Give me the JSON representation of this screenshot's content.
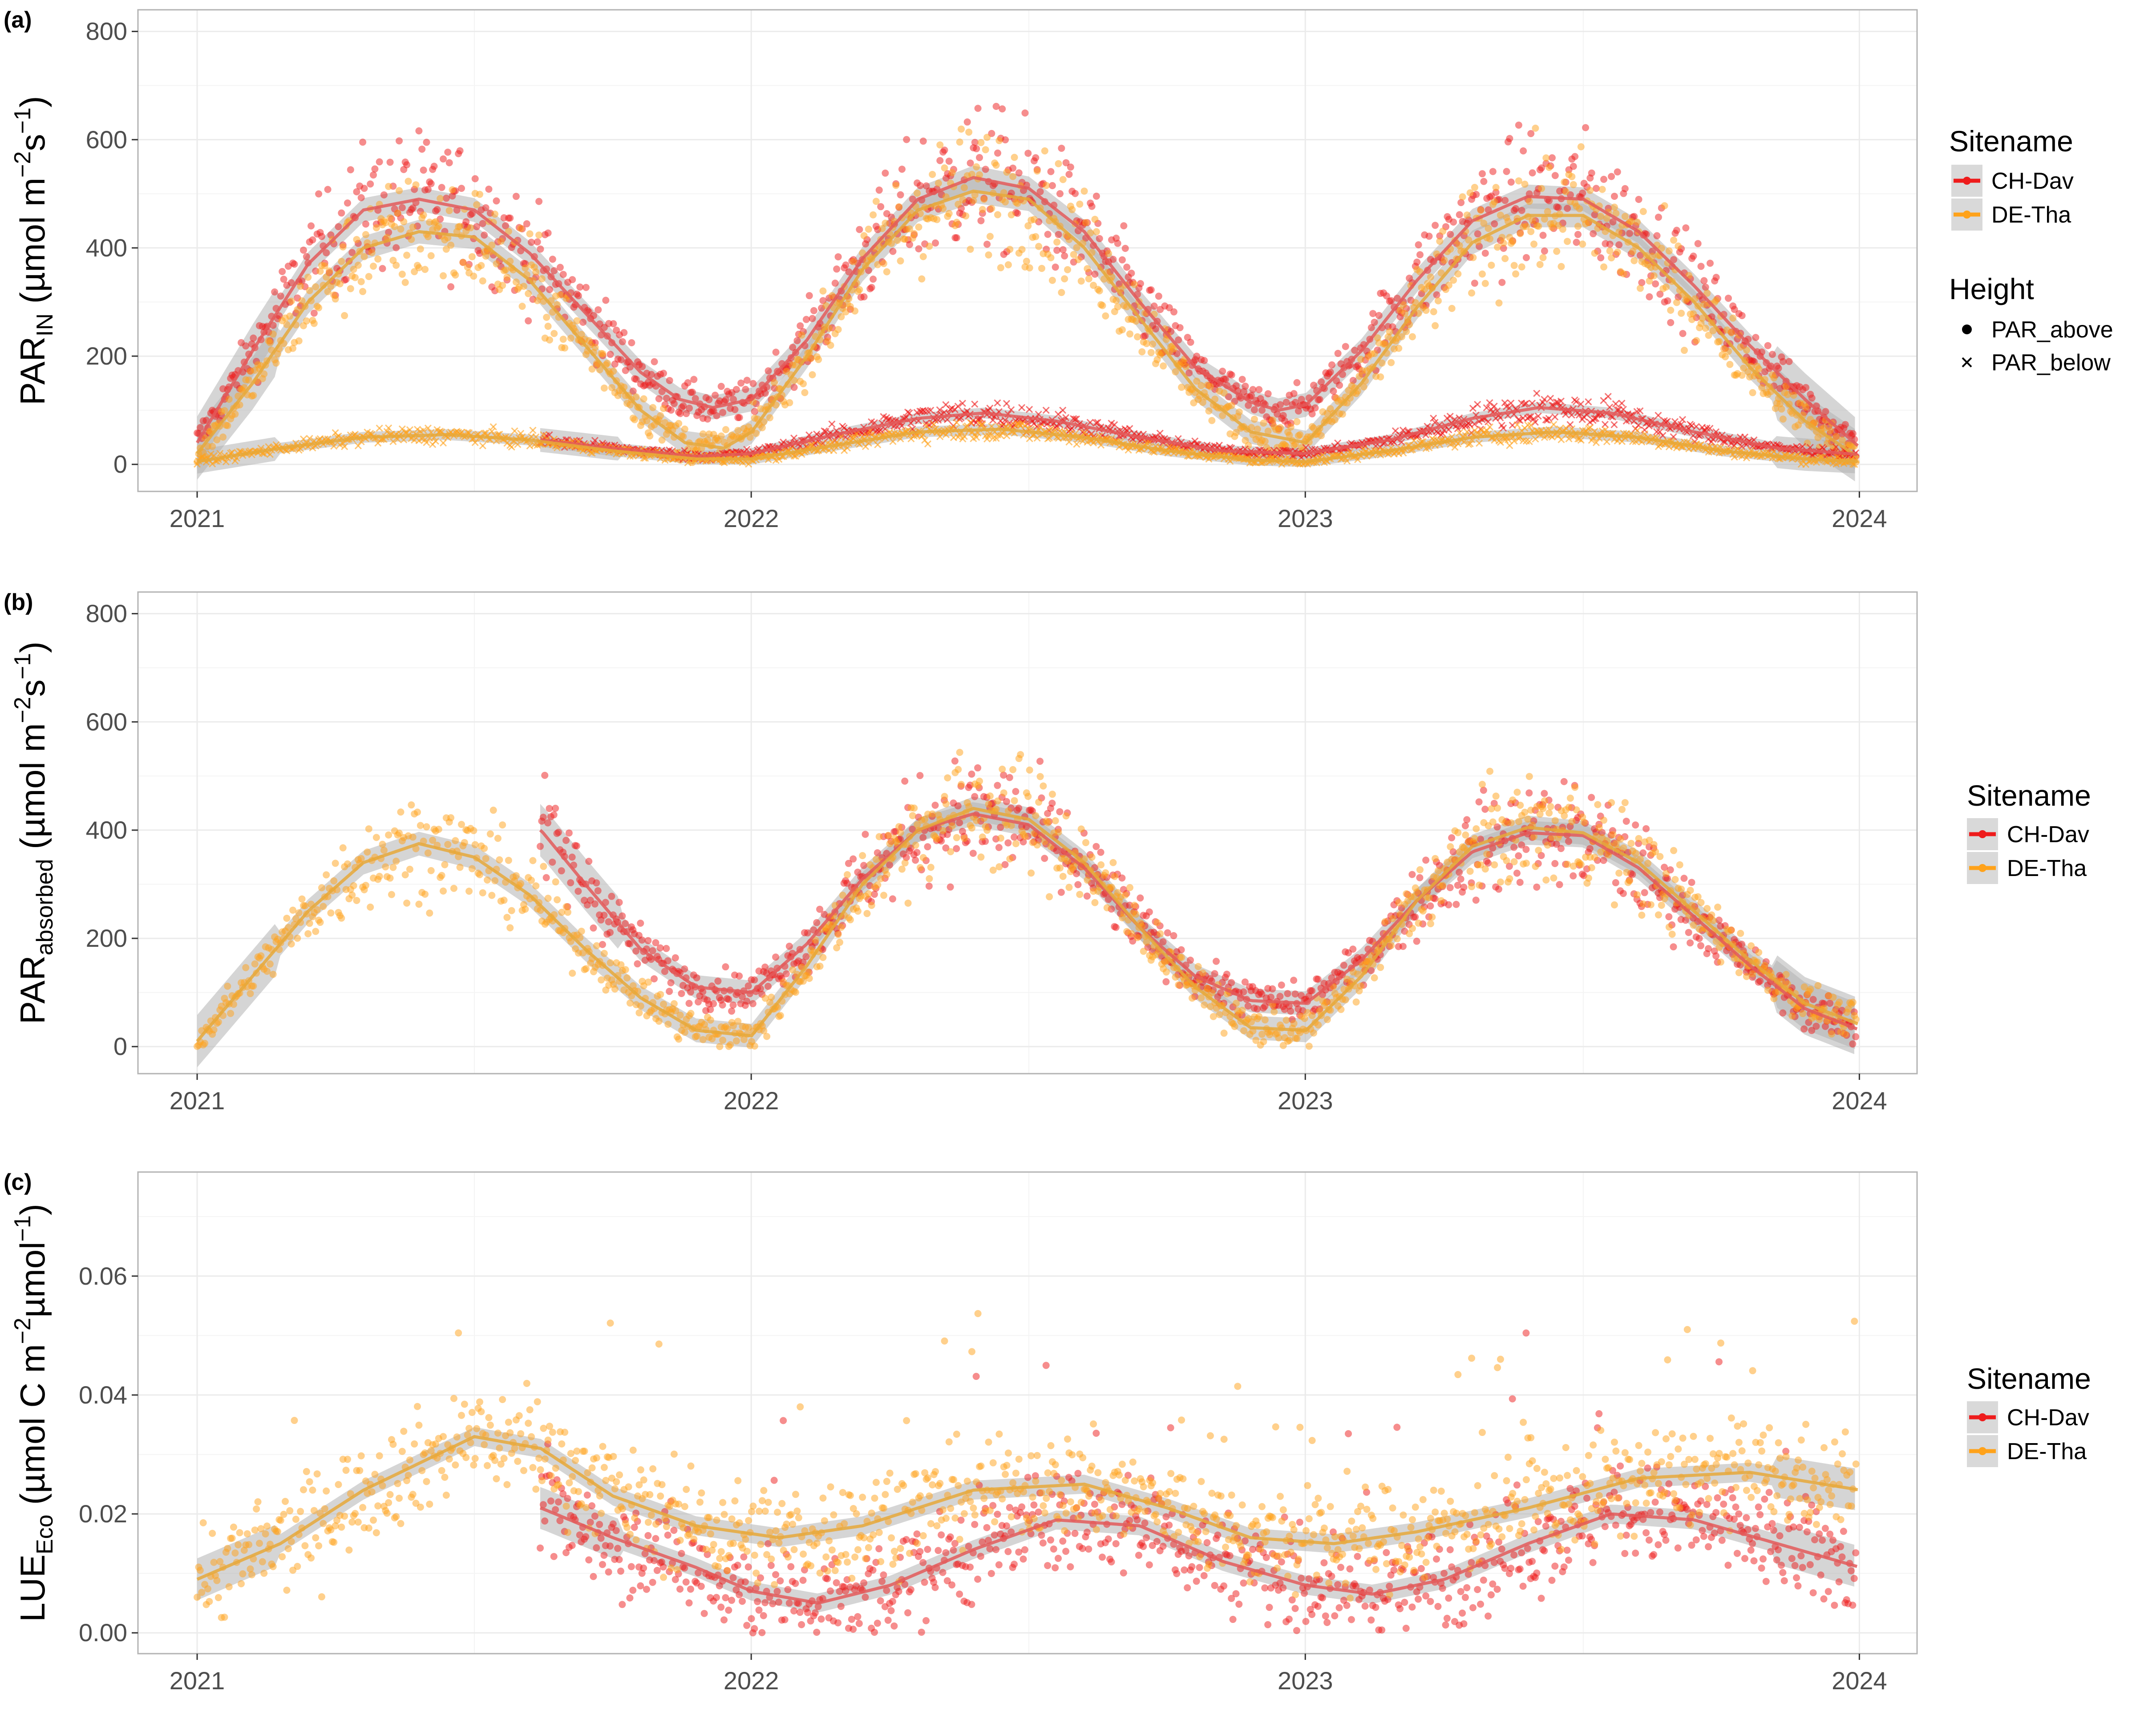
{
  "colors": {
    "CH-Dav": "#ee1c1c",
    "DE-Tha": "#ffa21a",
    "ribbon": "#b3b3b3",
    "smooth_CH-Dav": "#e35a5a",
    "smooth_DE-Tha": "#e6a83a"
  },
  "legend": {
    "sitename_title": "Sitename",
    "sites": [
      "CH-Dav",
      "DE-Tha"
    ],
    "height_title": "Height",
    "heights": [
      "PAR_above",
      "PAR_below"
    ],
    "height_icons": [
      "dot-icon",
      "cross-icon"
    ]
  },
  "chart_data": [
    {
      "type": "scatter",
      "panel": "(a)",
      "ylabel_main": "PAR",
      "ylabel_sub": "IN",
      "ylabel_unit": " (µmol m",
      "ylabel_exp1": "−2",
      "ylabel_mid": "s",
      "ylabel_exp2": "−1",
      "ylabel_close": ")",
      "x_ticks": [
        "2021",
        "2022",
        "2023",
        "2024"
      ],
      "xlim": [
        "2020-11-23",
        "2024-02-08"
      ],
      "ylim": [
        -50,
        840
      ],
      "y_ticks": [
        0,
        200,
        400,
        600,
        800
      ],
      "y_tick_labels": [
        "0",
        "200",
        "400",
        "600",
        "800"
      ],
      "grid": true,
      "legend_position": "right",
      "series": [
        {
          "name": "CH-Dav",
          "height": "PAR_above",
          "marker": "dot",
          "start": "2021-01-01",
          "end": "2023-12-31",
          "smooth": [
            [
              0.0,
              40
            ],
            [
              0.1,
              210
            ],
            [
              0.2,
              370
            ],
            [
              0.3,
              470
            ],
            [
              0.4,
              490
            ],
            [
              0.5,
              470
            ],
            [
              0.6,
              390
            ],
            [
              0.7,
              280
            ],
            [
              0.8,
              170
            ],
            [
              0.87,
              120
            ],
            [
              0.93,
              105
            ],
            [
              1.0,
              120
            ],
            [
              1.1,
              230
            ],
            [
              1.2,
              380
            ],
            [
              1.3,
              490
            ],
            [
              1.4,
              530
            ],
            [
              1.5,
              510
            ],
            [
              1.6,
              430
            ],
            [
              1.7,
              300
            ],
            [
              1.8,
              180
            ],
            [
              1.9,
              115
            ],
            [
              1.95,
              100
            ],
            [
              2.0,
              110
            ],
            [
              2.1,
              210
            ],
            [
              2.2,
              340
            ],
            [
              2.3,
              450
            ],
            [
              2.4,
              495
            ],
            [
              2.5,
              490
            ],
            [
              2.6,
              430
            ],
            [
              2.7,
              330
            ],
            [
              2.8,
              220
            ],
            [
              2.9,
              120
            ],
            [
              3.0,
              30
            ]
          ]
        },
        {
          "name": "DE-Tha",
          "height": "PAR_above",
          "marker": "dot",
          "start": "2021-01-01",
          "end": "2023-12-31",
          "smooth": [
            [
              0.0,
              20
            ],
            [
              0.1,
              150
            ],
            [
              0.2,
              300
            ],
            [
              0.3,
              400
            ],
            [
              0.4,
              430
            ],
            [
              0.5,
              420
            ],
            [
              0.6,
              340
            ],
            [
              0.7,
              220
            ],
            [
              0.8,
              100
            ],
            [
              0.88,
              40
            ],
            [
              0.95,
              30
            ],
            [
              1.0,
              60
            ],
            [
              1.1,
              200
            ],
            [
              1.2,
              360
            ],
            [
              1.3,
              470
            ],
            [
              1.4,
              505
            ],
            [
              1.5,
              490
            ],
            [
              1.6,
              400
            ],
            [
              1.7,
              270
            ],
            [
              1.8,
              140
            ],
            [
              1.9,
              60
            ],
            [
              2.0,
              40
            ],
            [
              2.1,
              150
            ],
            [
              2.2,
              290
            ],
            [
              2.3,
              410
            ],
            [
              2.4,
              460
            ],
            [
              2.5,
              460
            ],
            [
              2.6,
              400
            ],
            [
              2.7,
              300
            ],
            [
              2.8,
              180
            ],
            [
              2.9,
              80
            ],
            [
              3.0,
              10
            ]
          ]
        },
        {
          "name": "CH-Dav",
          "height": "PAR_below",
          "marker": "cross",
          "start": "2021-08-15",
          "end": "2023-12-31",
          "smooth": [
            [
              0.62,
              45
            ],
            [
              0.75,
              30
            ],
            [
              0.9,
              15
            ],
            [
              1.0,
              20
            ],
            [
              1.15,
              55
            ],
            [
              1.3,
              85
            ],
            [
              1.42,
              95
            ],
            [
              1.55,
              80
            ],
            [
              1.7,
              50
            ],
            [
              1.85,
              25
            ],
            [
              2.0,
              20
            ],
            [
              2.15,
              45
            ],
            [
              2.3,
              85
            ],
            [
              2.42,
              105
            ],
            [
              2.55,
              95
            ],
            [
              2.7,
              60
            ],
            [
              2.85,
              30
            ],
            [
              3.0,
              18
            ]
          ]
        },
        {
          "name": "DE-Tha",
          "height": "PAR_below",
          "marker": "cross",
          "start": "2021-01-01",
          "end": "2023-12-31",
          "smooth": [
            [
              0.0,
              5
            ],
            [
              0.15,
              30
            ],
            [
              0.3,
              50
            ],
            [
              0.45,
              55
            ],
            [
              0.6,
              45
            ],
            [
              0.75,
              25
            ],
            [
              0.9,
              10
            ],
            [
              1.0,
              10
            ],
            [
              1.15,
              35
            ],
            [
              1.3,
              60
            ],
            [
              1.45,
              65
            ],
            [
              1.6,
              50
            ],
            [
              1.75,
              25
            ],
            [
              1.9,
              8
            ],
            [
              2.0,
              5
            ],
            [
              2.15,
              25
            ],
            [
              2.3,
              50
            ],
            [
              2.45,
              60
            ],
            [
              2.6,
              50
            ],
            [
              2.75,
              25
            ],
            [
              2.9,
              10
            ],
            [
              3.0,
              5
            ]
          ]
        }
      ]
    },
    {
      "type": "scatter",
      "panel": "(b)",
      "ylabel_main": "PAR",
      "ylabel_sub": "absorbed",
      "ylabel_unit": " (µmol m",
      "ylabel_exp1": "−2",
      "ylabel_mid": "s",
      "ylabel_exp2": "−1",
      "ylabel_close": ")",
      "x_ticks": [
        "2021",
        "2022",
        "2023",
        "2024"
      ],
      "xlim": [
        "2020-11-23",
        "2024-02-08"
      ],
      "ylim": [
        -50,
        840
      ],
      "y_ticks": [
        0,
        200,
        400,
        600,
        800
      ],
      "y_tick_labels": [
        "0",
        "200",
        "400",
        "600",
        "800"
      ],
      "grid": true,
      "legend_position": "right",
      "series": [
        {
          "name": "CH-Dav",
          "start": "2021-08-15",
          "end": "2023-12-31",
          "smooth": [
            [
              0.62,
              400
            ],
            [
              0.7,
              300
            ],
            [
              0.8,
              180
            ],
            [
              0.9,
              110
            ],
            [
              1.0,
              100
            ],
            [
              1.1,
              190
            ],
            [
              1.2,
              310
            ],
            [
              1.3,
              400
            ],
            [
              1.4,
              430
            ],
            [
              1.5,
              410
            ],
            [
              1.6,
              330
            ],
            [
              1.7,
              220
            ],
            [
              1.8,
              130
            ],
            [
              1.9,
              85
            ],
            [
              2.0,
              80
            ],
            [
              2.1,
              160
            ],
            [
              2.2,
              270
            ],
            [
              2.3,
              360
            ],
            [
              2.4,
              395
            ],
            [
              2.5,
              390
            ],
            [
              2.6,
              330
            ],
            [
              2.7,
              240
            ],
            [
              2.8,
              150
            ],
            [
              2.9,
              70
            ],
            [
              3.0,
              30
            ]
          ]
        },
        {
          "name": "DE-Tha",
          "start": "2021-01-01",
          "end": "2023-12-31",
          "smooth": [
            [
              0.0,
              10
            ],
            [
              0.1,
              130
            ],
            [
              0.2,
              250
            ],
            [
              0.3,
              340
            ],
            [
              0.4,
              375
            ],
            [
              0.5,
              350
            ],
            [
              0.6,
              280
            ],
            [
              0.7,
              180
            ],
            [
              0.8,
              90
            ],
            [
              0.9,
              30
            ],
            [
              1.0,
              20
            ],
            [
              1.1,
              150
            ],
            [
              1.2,
              300
            ],
            [
              1.3,
              400
            ],
            [
              1.4,
              440
            ],
            [
              1.5,
              420
            ],
            [
              1.6,
              340
            ],
            [
              1.7,
              220
            ],
            [
              1.8,
              110
            ],
            [
              1.9,
              35
            ],
            [
              2.0,
              30
            ],
            [
              2.1,
              130
            ],
            [
              2.2,
              270
            ],
            [
              2.3,
              370
            ],
            [
              2.4,
              405
            ],
            [
              2.5,
              395
            ],
            [
              2.6,
              340
            ],
            [
              2.7,
              250
            ],
            [
              2.8,
              160
            ],
            [
              2.9,
              80
            ],
            [
              3.0,
              40
            ]
          ]
        }
      ]
    },
    {
      "type": "scatter",
      "panel": "(c)",
      "ylabel_main": "LUE",
      "ylabel_sub": "Eco",
      "ylabel_unit": " (µmol C m",
      "ylabel_exp1": "−2",
      "ylabel_mid": "µmol",
      "ylabel_exp2": "−1",
      "ylabel_close": ")",
      "x_ticks": [
        "2021",
        "2022",
        "2023",
        "2024"
      ],
      "xlim": [
        "2020-11-23",
        "2024-02-08"
      ],
      "ylim": [
        -0.0035,
        0.0775
      ],
      "y_ticks": [
        0,
        0.02,
        0.04,
        0.06
      ],
      "y_tick_labels": [
        "0.00",
        "0.02",
        "0.04",
        "0.06"
      ],
      "grid": true,
      "legend_position": "right",
      "series": [
        {
          "name": "CH-Dav",
          "start": "2021-08-15",
          "end": "2023-12-31",
          "smooth": [
            [
              0.62,
              0.021
            ],
            [
              0.75,
              0.016
            ],
            [
              0.9,
              0.011
            ],
            [
              1.0,
              0.007
            ],
            [
              1.12,
              0.005
            ],
            [
              1.25,
              0.008
            ],
            [
              1.4,
              0.014
            ],
            [
              1.55,
              0.019
            ],
            [
              1.7,
              0.018
            ],
            [
              1.85,
              0.012
            ],
            [
              2.0,
              0.008
            ],
            [
              2.12,
              0.0065
            ],
            [
              2.25,
              0.009
            ],
            [
              2.4,
              0.015
            ],
            [
              2.55,
              0.02
            ],
            [
              2.7,
              0.019
            ],
            [
              2.85,
              0.015
            ],
            [
              3.0,
              0.011
            ]
          ]
        },
        {
          "name": "DE-Tha",
          "start": "2021-01-01",
          "end": "2023-12-31",
          "smooth": [
            [
              0.0,
              0.009
            ],
            [
              0.15,
              0.015
            ],
            [
              0.3,
              0.024
            ],
            [
              0.5,
              0.033
            ],
            [
              0.62,
              0.031
            ],
            [
              0.75,
              0.023
            ],
            [
              0.9,
              0.018
            ],
            [
              1.05,
              0.016
            ],
            [
              1.2,
              0.018
            ],
            [
              1.4,
              0.024
            ],
            [
              1.6,
              0.025
            ],
            [
              1.75,
              0.021
            ],
            [
              1.9,
              0.016
            ],
            [
              2.05,
              0.015
            ],
            [
              2.2,
              0.017
            ],
            [
              2.4,
              0.021
            ],
            [
              2.6,
              0.026
            ],
            [
              2.8,
              0.027
            ],
            [
              3.0,
              0.024
            ]
          ]
        }
      ]
    }
  ]
}
